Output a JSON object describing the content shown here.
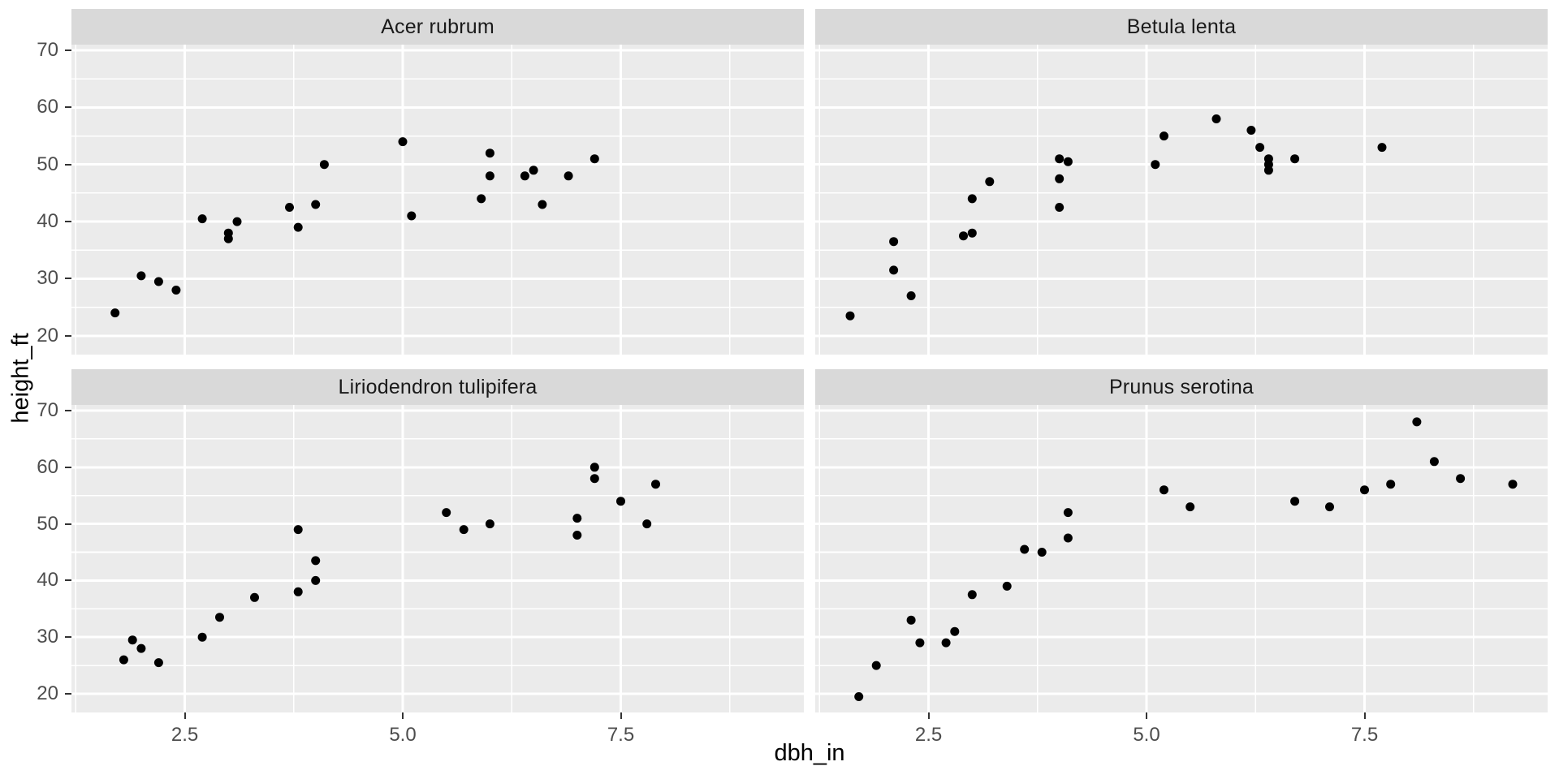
{
  "chart_data": {
    "type": "scatter",
    "title": "",
    "xlabel": "dbh_in",
    "ylabel": "height_ft",
    "legend": "none",
    "grid": "white major+minor gridlines on grey panels",
    "xlim": [
      1.2,
      9.6
    ],
    "ylim": [
      16.7,
      71.0
    ],
    "x_ticks": {
      "values": [
        2.5,
        5.0,
        7.5
      ],
      "labels": [
        "2.5",
        "5.0",
        "7.5"
      ]
    },
    "y_ticks": {
      "values": [
        20,
        30,
        40,
        50,
        60,
        70
      ],
      "labels": [
        "20",
        "30",
        "40",
        "50",
        "60",
        "70"
      ]
    },
    "x_minor": [
      1.25,
      3.75,
      6.25,
      8.75
    ],
    "y_minor": [
      25,
      35,
      45,
      55,
      65
    ],
    "facets": [
      {
        "label": "Acer rubrum",
        "points": [
          [
            1.7,
            24
          ],
          [
            2.0,
            30.5
          ],
          [
            2.2,
            29.5
          ],
          [
            2.4,
            28
          ],
          [
            2.7,
            40.5
          ],
          [
            3.0,
            38
          ],
          [
            3.0,
            37
          ],
          [
            3.1,
            40
          ],
          [
            3.7,
            42.5
          ],
          [
            3.8,
            39
          ],
          [
            4.0,
            43
          ],
          [
            4.1,
            50
          ],
          [
            5.0,
            54
          ],
          [
            5.1,
            41
          ],
          [
            5.9,
            44
          ],
          [
            6.0,
            52
          ],
          [
            6.0,
            48
          ],
          [
            6.4,
            48
          ],
          [
            6.5,
            49
          ],
          [
            6.6,
            43
          ],
          [
            6.9,
            48
          ],
          [
            7.2,
            51
          ]
        ]
      },
      {
        "label": "Betula lenta",
        "points": [
          [
            1.6,
            23.5
          ],
          [
            2.1,
            36.5
          ],
          [
            2.1,
            31.5
          ],
          [
            2.3,
            27
          ],
          [
            2.9,
            37.5
          ],
          [
            3.0,
            38
          ],
          [
            3.0,
            44
          ],
          [
            3.2,
            47
          ],
          [
            4.0,
            42.5
          ],
          [
            4.0,
            47.5
          ],
          [
            4.0,
            51
          ],
          [
            4.1,
            50.5
          ],
          [
            5.1,
            50
          ],
          [
            5.2,
            55
          ],
          [
            5.8,
            58
          ],
          [
            6.2,
            56
          ],
          [
            6.3,
            53
          ],
          [
            6.4,
            51
          ],
          [
            6.4,
            50
          ],
          [
            6.4,
            49
          ],
          [
            6.7,
            51
          ],
          [
            7.7,
            53
          ]
        ]
      },
      {
        "label": "Liriodendron tulipifera",
        "points": [
          [
            1.8,
            26
          ],
          [
            1.9,
            29.5
          ],
          [
            2.0,
            28
          ],
          [
            2.2,
            25.5
          ],
          [
            2.7,
            30
          ],
          [
            2.9,
            33.5
          ],
          [
            3.3,
            37
          ],
          [
            3.8,
            38
          ],
          [
            3.8,
            49
          ],
          [
            4.0,
            40
          ],
          [
            4.0,
            43.5
          ],
          [
            5.5,
            52
          ],
          [
            5.7,
            49
          ],
          [
            6.0,
            50
          ],
          [
            7.0,
            48
          ],
          [
            7.0,
            51
          ],
          [
            7.2,
            58
          ],
          [
            7.2,
            60
          ],
          [
            7.5,
            54
          ],
          [
            7.8,
            50
          ],
          [
            7.9,
            57
          ]
        ]
      },
      {
        "label": "Prunus serotina",
        "points": [
          [
            1.7,
            19.5
          ],
          [
            1.9,
            25
          ],
          [
            2.3,
            33
          ],
          [
            2.4,
            29
          ],
          [
            2.7,
            29
          ],
          [
            2.8,
            31
          ],
          [
            3.0,
            37.5
          ],
          [
            3.4,
            39
          ],
          [
            3.6,
            45.5
          ],
          [
            3.8,
            45
          ],
          [
            4.1,
            47.5
          ],
          [
            4.1,
            52
          ],
          [
            5.2,
            56
          ],
          [
            5.5,
            53
          ],
          [
            6.7,
            54
          ],
          [
            7.1,
            53
          ],
          [
            7.5,
            56
          ],
          [
            7.8,
            57
          ],
          [
            8.1,
            68
          ],
          [
            8.3,
            61
          ],
          [
            8.6,
            58
          ],
          [
            9.2,
            57
          ]
        ]
      }
    ]
  },
  "theme": {
    "background": "#ffffff",
    "panel_bg": "#ebebeb",
    "strip_bg": "#d9d9d9",
    "strip_text": "#1a1a1a",
    "grid_color": "#ffffff",
    "tick_label_color": "#4d4d4d",
    "axis_title_color": "#000000",
    "tick_mark_color": "#333333",
    "point_color": "#000000"
  }
}
